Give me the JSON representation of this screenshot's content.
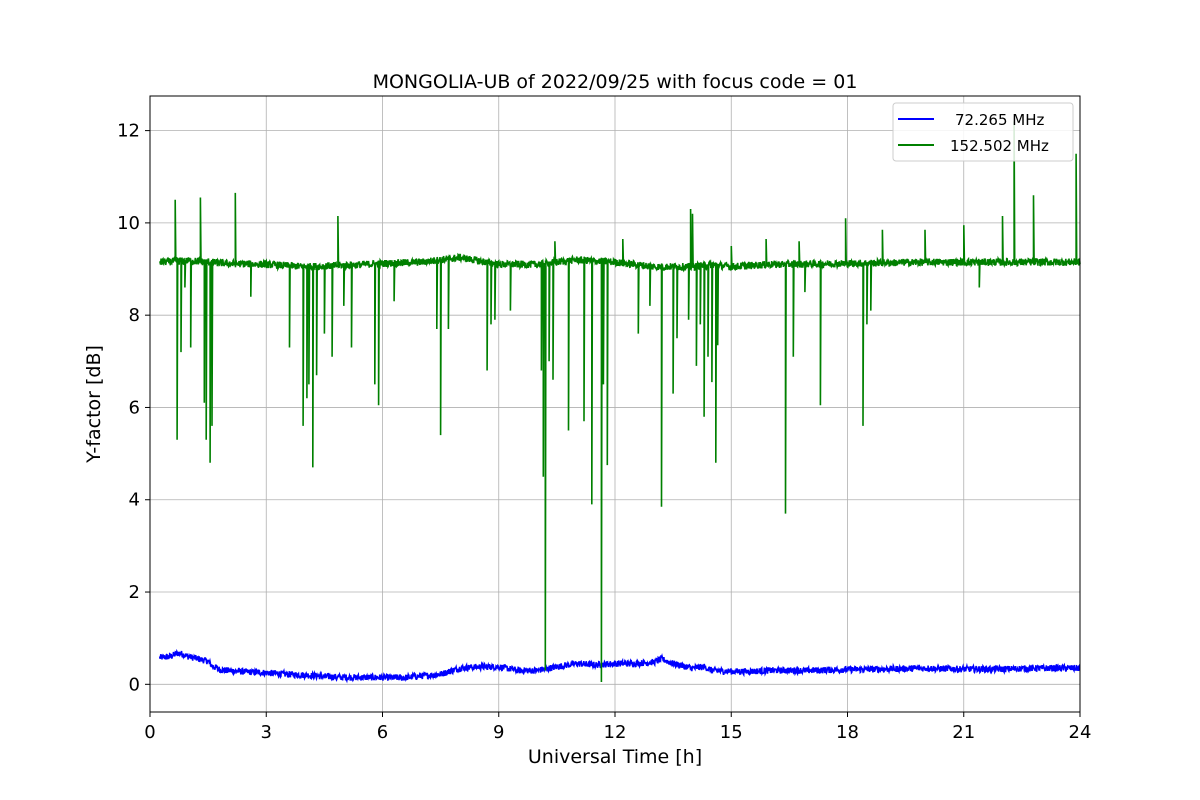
{
  "chart_data": {
    "type": "line",
    "title": "MONGOLIA-UB of 2022/09/25 with focus code = 01",
    "xlabel": "Universal Time [h]",
    "ylabel": "Y-factor [dB]",
    "xlim": [
      0,
      24
    ],
    "ylim": [
      -0.6,
      12.75
    ],
    "xticks": [
      0,
      3,
      6,
      9,
      12,
      15,
      18,
      21,
      24
    ],
    "yticks": [
      0,
      2,
      4,
      6,
      8,
      10,
      12
    ],
    "xtick_labels": [
      "0",
      "3",
      "6",
      "9",
      "12",
      "15",
      "18",
      "21",
      "24"
    ],
    "ytick_labels": [
      "0",
      "2",
      "4",
      "6",
      "8",
      "10",
      "12"
    ],
    "grid": true,
    "legend_position": "top-right",
    "series": [
      {
        "name": "72.265 MHz",
        "color": "#0000ff",
        "x": [
          0.25,
          0.5,
          0.75,
          1.0,
          1.25,
          1.5,
          1.6,
          1.8,
          2.0,
          2.5,
          3.0,
          3.5,
          4.0,
          4.5,
          5.0,
          5.5,
          6.0,
          6.5,
          7.0,
          7.5,
          8.0,
          8.5,
          9.0,
          9.5,
          10.0,
          10.5,
          11.0,
          11.5,
          12.0,
          12.5,
          13.0,
          13.2,
          13.5,
          14.0,
          14.3,
          14.5,
          15.0,
          15.5,
          16.0,
          17.0,
          18.0,
          19.0,
          20.0,
          21.0,
          22.0,
          23.0,
          24.0
        ],
        "values": [
          0.58,
          0.6,
          0.68,
          0.6,
          0.55,
          0.5,
          0.4,
          0.32,
          0.3,
          0.27,
          0.25,
          0.22,
          0.2,
          0.17,
          0.15,
          0.15,
          0.15,
          0.14,
          0.18,
          0.22,
          0.35,
          0.38,
          0.38,
          0.3,
          0.3,
          0.38,
          0.45,
          0.42,
          0.45,
          0.45,
          0.48,
          0.55,
          0.45,
          0.35,
          0.38,
          0.3,
          0.28,
          0.28,
          0.3,
          0.3,
          0.32,
          0.33,
          0.35,
          0.33,
          0.33,
          0.35,
          0.35
        ]
      },
      {
        "name": "152.502 MHz",
        "color": "#008000",
        "baseline": [
          [
            0.25,
            9.15
          ],
          [
            1.0,
            9.18
          ],
          [
            2.0,
            9.12
          ],
          [
            3.0,
            9.1
          ],
          [
            4.0,
            9.05
          ],
          [
            5.0,
            9.08
          ],
          [
            6.0,
            9.12
          ],
          [
            7.0,
            9.15
          ],
          [
            8.0,
            9.25
          ],
          [
            9.0,
            9.1
          ],
          [
            10.0,
            9.1
          ],
          [
            11.0,
            9.2
          ],
          [
            12.0,
            9.15
          ],
          [
            13.0,
            9.05
          ],
          [
            14.0,
            9.05
          ],
          [
            14.5,
            9.1
          ],
          [
            15.0,
            9.05
          ],
          [
            16.0,
            9.1
          ],
          [
            18.0,
            9.12
          ],
          [
            20.0,
            9.15
          ],
          [
            22.0,
            9.15
          ],
          [
            24.0,
            9.15
          ]
        ],
        "spikes": [
          [
            0.65,
            10.5
          ],
          [
            0.7,
            5.3
          ],
          [
            0.8,
            7.2
          ],
          [
            0.9,
            8.6
          ],
          [
            1.05,
            7.3
          ],
          [
            1.3,
            10.55
          ],
          [
            1.4,
            6.1
          ],
          [
            1.45,
            5.3
          ],
          [
            1.55,
            4.8
          ],
          [
            1.6,
            5.6
          ],
          [
            2.2,
            10.65
          ],
          [
            2.6,
            8.4
          ],
          [
            3.6,
            7.3
          ],
          [
            3.95,
            5.6
          ],
          [
            4.05,
            6.2
          ],
          [
            4.1,
            6.5
          ],
          [
            4.2,
            4.7
          ],
          [
            4.3,
            6.7
          ],
          [
            4.5,
            7.6
          ],
          [
            4.7,
            7.1
          ],
          [
            4.85,
            10.15
          ],
          [
            5.0,
            8.2
          ],
          [
            5.2,
            7.3
          ],
          [
            5.8,
            6.5
          ],
          [
            5.9,
            6.05
          ],
          [
            6.3,
            8.3
          ],
          [
            7.4,
            7.7
          ],
          [
            7.5,
            5.4
          ],
          [
            7.7,
            7.7
          ],
          [
            8.7,
            6.8
          ],
          [
            8.8,
            7.8
          ],
          [
            8.9,
            7.9
          ],
          [
            9.3,
            8.1
          ],
          [
            10.1,
            6.8
          ],
          [
            10.15,
            4.5
          ],
          [
            10.2,
            0.3
          ],
          [
            10.3,
            7.0
          ],
          [
            10.4,
            6.6
          ],
          [
            10.45,
            9.6
          ],
          [
            10.8,
            5.5
          ],
          [
            11.2,
            5.7
          ],
          [
            11.4,
            3.9
          ],
          [
            11.65,
            0.05
          ],
          [
            11.7,
            6.5
          ],
          [
            11.8,
            4.75
          ],
          [
            12.2,
            9.65
          ],
          [
            12.6,
            7.6
          ],
          [
            12.9,
            8.2
          ],
          [
            13.2,
            3.85
          ],
          [
            13.5,
            6.3
          ],
          [
            13.6,
            7.5
          ],
          [
            13.9,
            7.9
          ],
          [
            13.95,
            10.3
          ],
          [
            14.0,
            10.2
          ],
          [
            14.1,
            6.9
          ],
          [
            14.2,
            7.8
          ],
          [
            14.3,
            5.8
          ],
          [
            14.4,
            7.1
          ],
          [
            14.5,
            6.55
          ],
          [
            14.6,
            4.8
          ],
          [
            14.65,
            7.35
          ],
          [
            15.0,
            9.5
          ],
          [
            15.9,
            9.65
          ],
          [
            16.4,
            3.7
          ],
          [
            16.6,
            7.1
          ],
          [
            16.75,
            9.6
          ],
          [
            16.9,
            8.5
          ],
          [
            17.3,
            6.05
          ],
          [
            17.95,
            10.1
          ],
          [
            18.4,
            5.6
          ],
          [
            18.5,
            7.8
          ],
          [
            18.6,
            8.1
          ],
          [
            18.9,
            9.85
          ],
          [
            20.0,
            9.85
          ],
          [
            21.0,
            9.95
          ],
          [
            21.4,
            8.6
          ],
          [
            22.0,
            10.15
          ],
          [
            22.3,
            12.2
          ],
          [
            22.8,
            10.6
          ],
          [
            23.9,
            11.5
          ]
        ]
      }
    ]
  }
}
